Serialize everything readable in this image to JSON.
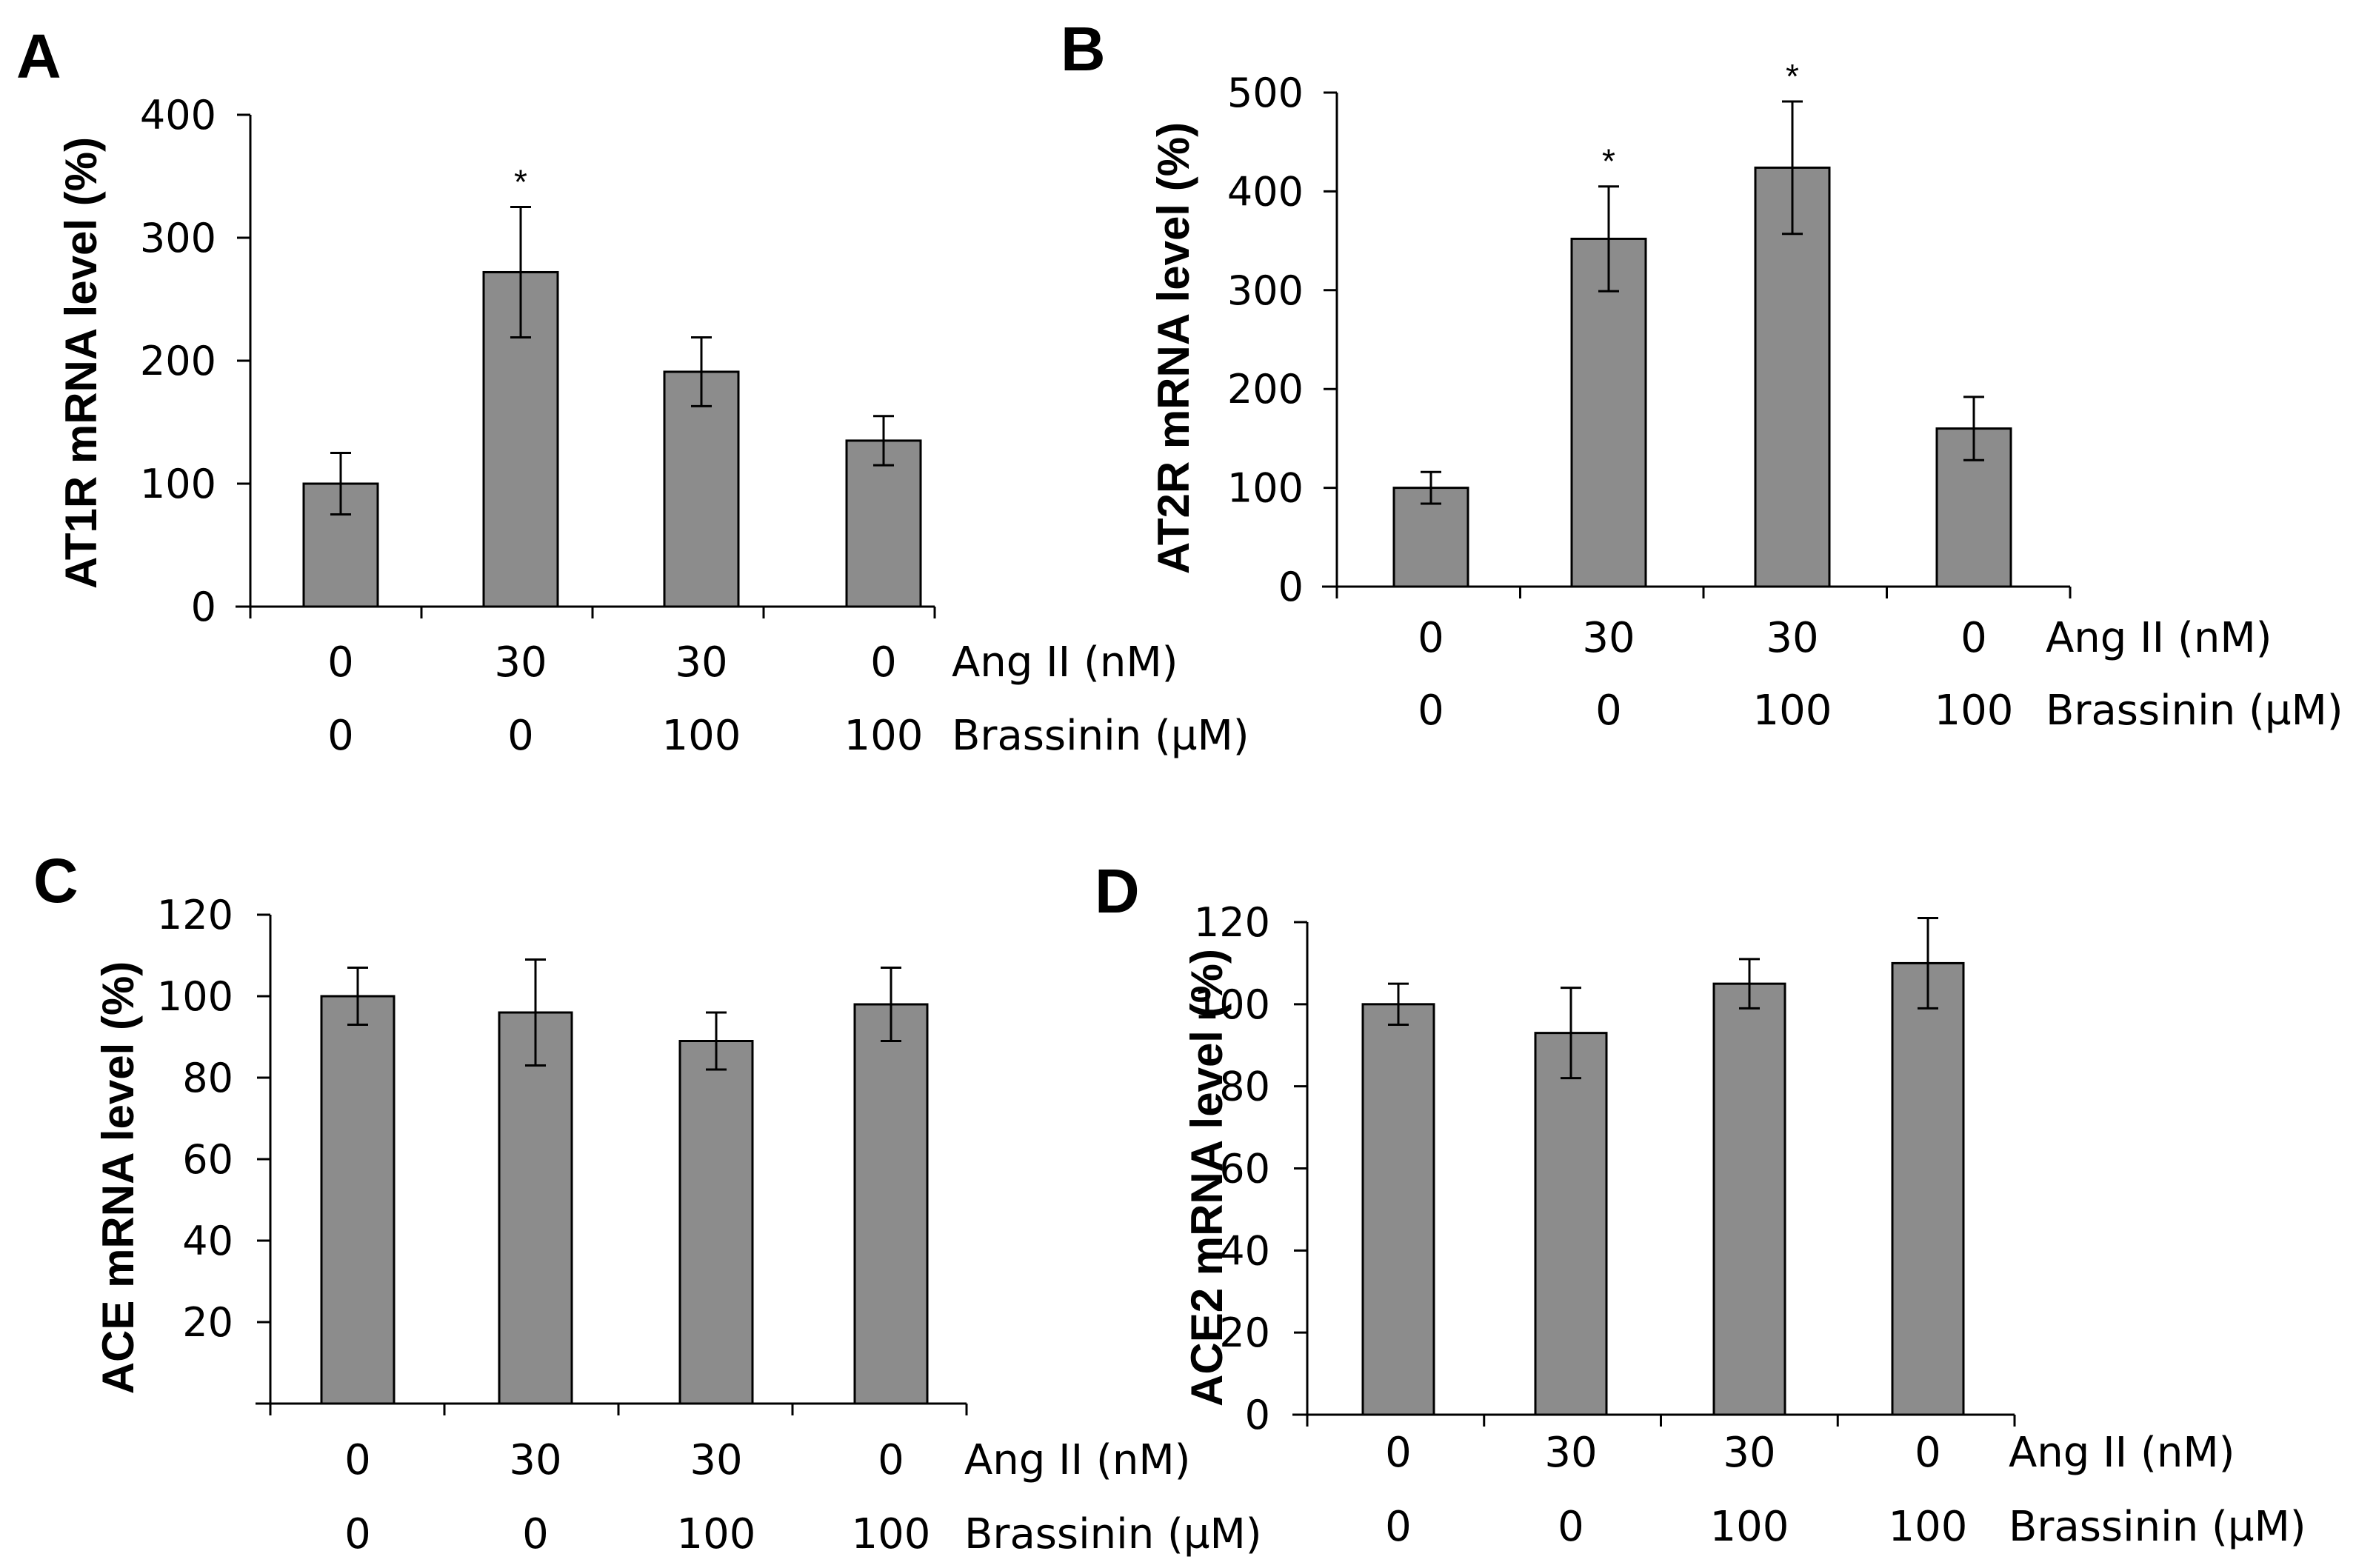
{
  "chart_data": [
    {
      "type": "bar",
      "panel": "A",
      "ylabel": "AT1R mRNA level (%)",
      "ylim": [
        0,
        400
      ],
      "yticks": [
        0,
        100,
        200,
        300,
        400
      ],
      "categories": [
        "0/0",
        "30/0",
        "30/100",
        "0/100"
      ],
      "values": [
        100,
        272,
        191,
        135
      ],
      "errors": [
        25,
        53,
        28,
        20
      ],
      "significance": [
        "",
        "*",
        "",
        ""
      ],
      "rows": [
        {
          "label": "Ang II (nM)",
          "values": [
            "0",
            "30",
            "30",
            "0"
          ]
        },
        {
          "label": "Brassinin (µM)",
          "values": [
            "0",
            "0",
            "100",
            "100"
          ]
        }
      ]
    },
    {
      "type": "bar",
      "panel": "B",
      "ylabel": "AT2R mRNA level (%)",
      "ylim": [
        0,
        500
      ],
      "yticks": [
        0,
        100,
        200,
        300,
        400,
        500
      ],
      "categories": [
        "0/0",
        "30/0",
        "30/100",
        "0/100"
      ],
      "values": [
        100,
        352,
        424,
        160
      ],
      "errors": [
        16,
        53,
        67,
        32
      ],
      "significance": [
        "",
        "*",
        "*",
        ""
      ],
      "rows": [
        {
          "label": "Ang II (nM)",
          "values": [
            "0",
            "30",
            "30",
            "0"
          ]
        },
        {
          "label": "Brassinin (µM)",
          "values": [
            "0",
            "0",
            "100",
            "100"
          ]
        }
      ]
    },
    {
      "type": "bar",
      "panel": "C",
      "ylabel": "ACE mRNA level (%)",
      "ylim": [
        0,
        120
      ],
      "yticks": [
        20,
        40,
        60,
        80,
        100,
        120
      ],
      "categories": [
        "0/0",
        "30/0",
        "30/100",
        "0/100"
      ],
      "values": [
        100,
        96,
        89,
        98
      ],
      "errors": [
        7,
        13,
        7,
        9
      ],
      "significance": [
        "",
        "",
        "",
        ""
      ],
      "rows": [
        {
          "label": "Ang II (nM)",
          "values": [
            "0",
            "30",
            "30",
            "0"
          ]
        },
        {
          "label": "Brassinin (µM)",
          "values": [
            "0",
            "0",
            "100",
            "100"
          ]
        }
      ]
    },
    {
      "type": "bar",
      "panel": "D",
      "ylabel": "ACE2 mRNA level (%)",
      "ylim": [
        0,
        120
      ],
      "yticks": [
        0,
        20,
        40,
        60,
        80,
        100,
        120
      ],
      "categories": [
        "0/0",
        "30/0",
        "30/100",
        "0/100"
      ],
      "values": [
        100,
        93,
        105,
        110
      ],
      "errors": [
        5,
        11,
        6,
        11
      ],
      "significance": [
        "",
        "",
        "",
        ""
      ],
      "rows": [
        {
          "label": "Ang II (nM)",
          "values": [
            "0",
            "30",
            "30",
            "0"
          ]
        },
        {
          "label": "Brassinin (µM)",
          "values": [
            "0",
            "0",
            "100",
            "100"
          ]
        }
      ]
    }
  ],
  "colors": {
    "bar_fill": "#8c8c8c",
    "bar_stroke": "#000000",
    "axis": "#000000",
    "background": "#ffffff"
  }
}
